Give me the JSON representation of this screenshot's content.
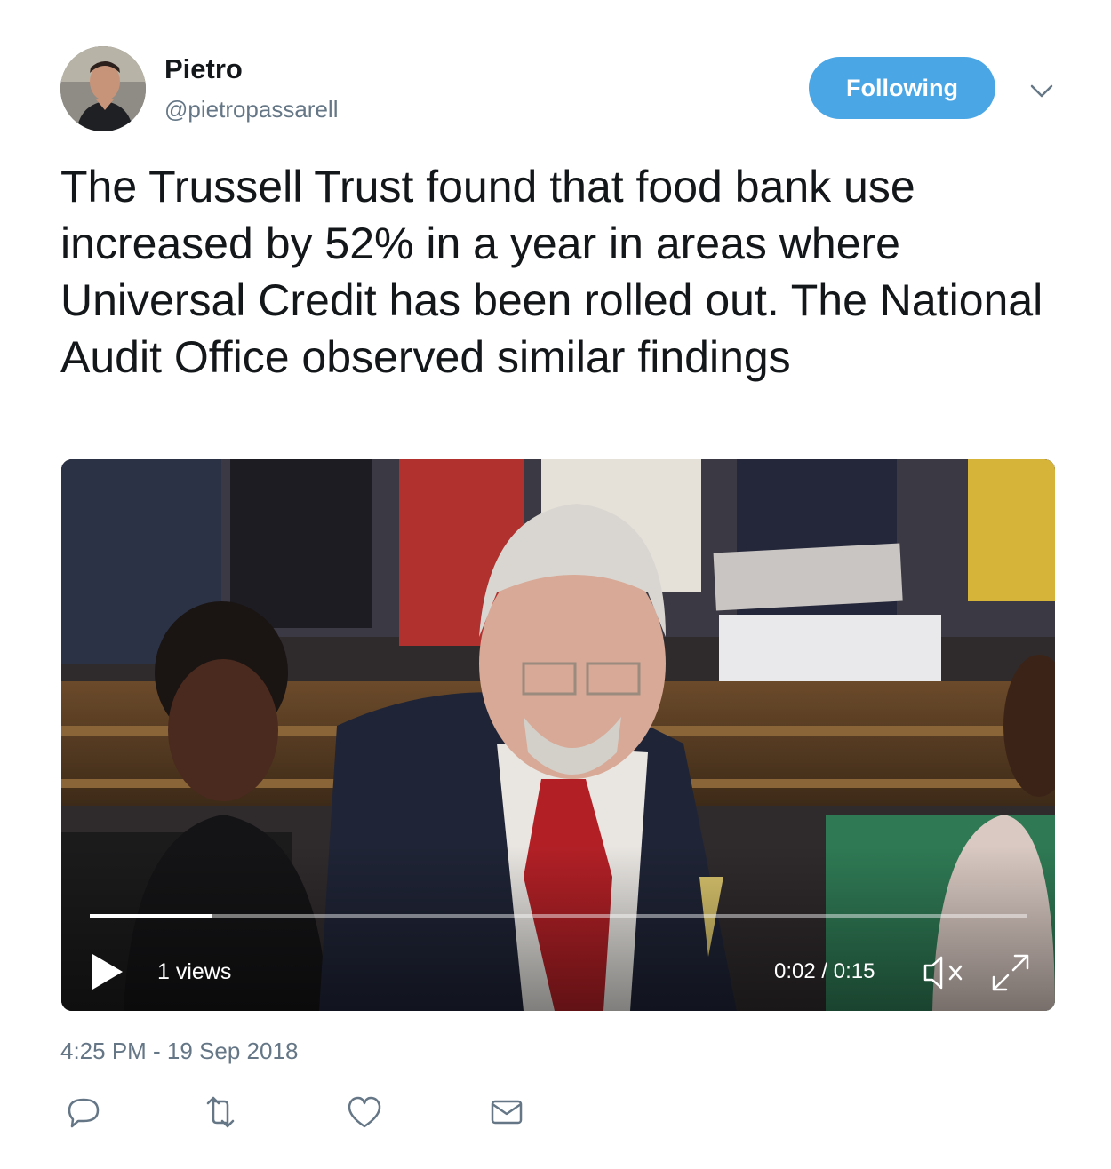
{
  "user": {
    "display_name": "Pietro",
    "handle": "@pietropassarell"
  },
  "follow_button": {
    "label": "Following"
  },
  "tweet": {
    "text": "The Trussell Trust found that food bank use increased by 52% in a year in areas where Universal Credit has been rolled out. The National Audit Office observed similar findings"
  },
  "video": {
    "views": "1 views",
    "time": "0:02 / 0:15",
    "progress": 0.13
  },
  "timestamp": "4:25 PM - 19 Sep 2018",
  "actions": {
    "icons": [
      "reply-icon",
      "retweet-icon",
      "like-icon",
      "message-icon"
    ]
  },
  "colors": {
    "accent": "#4aa6e5",
    "secondary_text": "#657786"
  }
}
